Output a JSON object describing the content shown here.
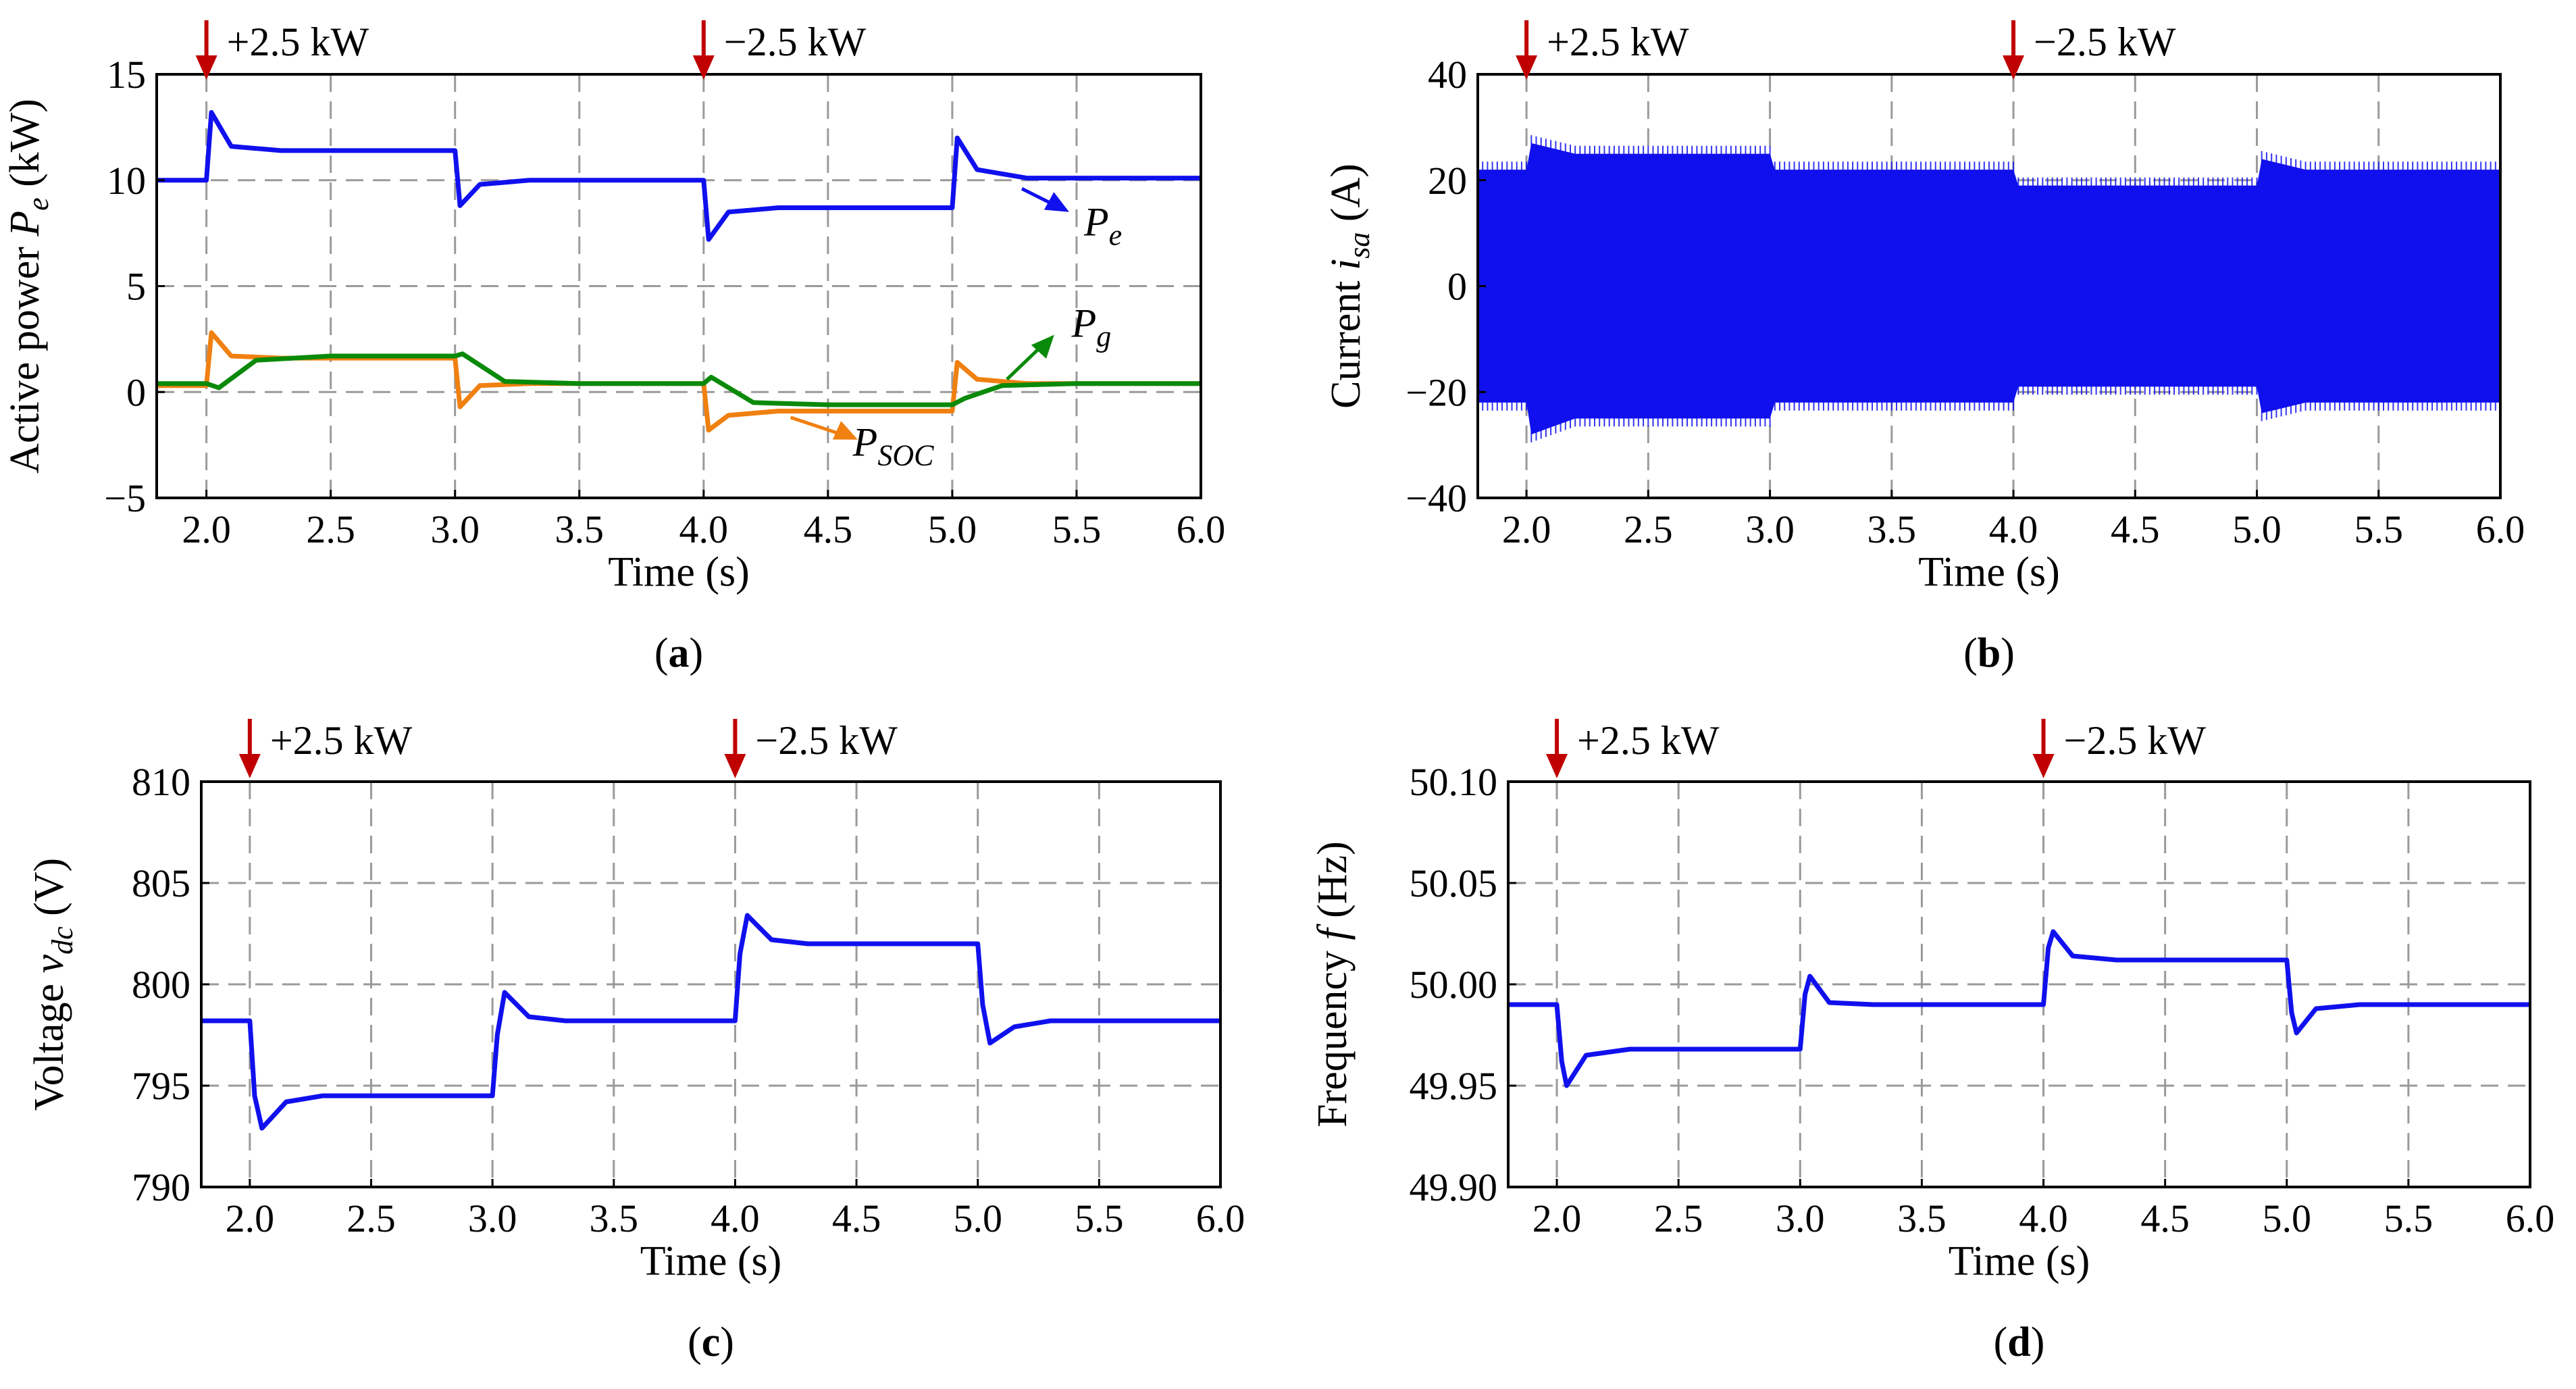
{
  "chart_data": [
    {
      "id": "a",
      "type": "line",
      "caption_letter": "a",
      "xlabel": "Time (s)",
      "ylabel": {
        "prefix": "Active power ",
        "var": "P",
        "sub": "e",
        "suffix": " (kW)"
      },
      "xlim": [
        1.8,
        6.0
      ],
      "ylim": [
        -5,
        15
      ],
      "xticks": [
        2.0,
        2.5,
        3.0,
        3.5,
        4.0,
        4.5,
        5.0,
        5.5,
        6.0
      ],
      "xtick_labels": [
        "2.0",
        "2.5",
        "3.0",
        "3.5",
        "4.0",
        "4.5",
        "5.0",
        "5.5",
        "6.0"
      ],
      "yticks": [
        -5,
        0,
        5,
        10,
        15
      ],
      "ytick_labels": [
        "−5",
        "0",
        "5",
        "10",
        "15"
      ],
      "annotations": [
        {
          "x": 2.0,
          "text": "+2.5 kW"
        },
        {
          "x": 4.0,
          "text": "−2.5 kW"
        }
      ],
      "series": [
        {
          "name": "P_e",
          "label_var": "P",
          "label_sub": "e",
          "color": "#1010ee",
          "x": [
            1.8,
            2.0,
            2.02,
            2.1,
            2.3,
            3.0,
            3.02,
            3.1,
            3.3,
            4.0,
            4.02,
            4.1,
            4.3,
            5.0,
            5.02,
            5.1,
            5.3,
            6.0
          ],
          "y": [
            10.0,
            10.0,
            13.2,
            11.6,
            11.4,
            11.4,
            8.8,
            9.8,
            10.0,
            10.0,
            7.2,
            8.5,
            8.7,
            8.7,
            12.0,
            10.5,
            10.1,
            10.1
          ]
        },
        {
          "name": "P_SOC",
          "label_var": "P",
          "label_sub": "SOC",
          "color": "#f08010",
          "x": [
            1.8,
            2.0,
            2.02,
            2.1,
            2.3,
            3.0,
            3.02,
            3.1,
            3.3,
            4.0,
            4.02,
            4.1,
            4.3,
            5.0,
            5.02,
            5.1,
            5.3,
            6.0
          ],
          "y": [
            0.3,
            0.3,
            2.8,
            1.7,
            1.6,
            1.6,
            -0.7,
            0.3,
            0.4,
            0.4,
            -1.8,
            -1.1,
            -0.9,
            -0.9,
            1.4,
            0.6,
            0.4,
            0.4
          ]
        },
        {
          "name": "P_g",
          "label_var": "P",
          "label_sub": "g",
          "color": "#0a8a0a",
          "x": [
            1.8,
            2.0,
            2.05,
            2.2,
            2.5,
            3.0,
            3.03,
            3.2,
            3.5,
            4.0,
            4.03,
            4.2,
            4.5,
            5.0,
            5.05,
            5.2,
            5.5,
            6.0
          ],
          "y": [
            0.4,
            0.4,
            0.2,
            1.5,
            1.7,
            1.7,
            1.8,
            0.5,
            0.4,
            0.4,
            0.7,
            -0.5,
            -0.6,
            -0.6,
            -0.3,
            0.3,
            0.4,
            0.4
          ]
        }
      ]
    },
    {
      "id": "b",
      "type": "line",
      "caption_letter": "b",
      "xlabel": "Time (s)",
      "ylabel": {
        "prefix": "Current ",
        "var": "i",
        "sub": "sa",
        "suffix": " (A)"
      },
      "xlim": [
        1.8,
        6.0
      ],
      "ylim": [
        -40,
        40
      ],
      "xticks": [
        2.0,
        2.5,
        3.0,
        3.5,
        4.0,
        4.5,
        5.0,
        5.5,
        6.0
      ],
      "xtick_labels": [
        "2.0",
        "2.5",
        "3.0",
        "3.5",
        "4.0",
        "4.5",
        "5.0",
        "5.5",
        "6.0"
      ],
      "yticks": [
        -40,
        -20,
        0,
        20,
        40
      ],
      "ytick_labels": [
        "−40",
        "−20",
        "0",
        "20",
        "40"
      ],
      "annotations": [
        {
          "x": 2.0,
          "text": "+2.5 kW"
        },
        {
          "x": 4.0,
          "text": "−2.5 kW"
        }
      ],
      "series": [
        {
          "name": "i_sa envelope",
          "color": "#1010ee",
          "x": [
            1.8,
            2.0,
            2.02,
            2.2,
            3.0,
            3.02,
            3.2,
            4.0,
            4.02,
            4.2,
            5.0,
            5.02,
            5.2,
            6.0
          ],
          "upper": [
            22,
            22,
            27,
            25,
            25,
            22,
            22,
            22,
            19,
            19,
            19,
            24,
            22,
            22
          ],
          "lower": [
            -22,
            -22,
            -28,
            -25,
            -25,
            -22,
            -22,
            -22,
            -19,
            -19,
            -19,
            -24,
            -22,
            -22
          ]
        }
      ]
    },
    {
      "id": "c",
      "type": "line",
      "caption_letter": "c",
      "xlabel": "Time (s)",
      "ylabel": {
        "prefix": "Voltage ",
        "var": "v",
        "sub": "dc",
        "suffix": " (V)"
      },
      "xlim": [
        1.8,
        6.0
      ],
      "ylim": [
        790,
        810
      ],
      "xticks": [
        2.0,
        2.5,
        3.0,
        3.5,
        4.0,
        4.5,
        5.0,
        5.5,
        6.0
      ],
      "xtick_labels": [
        "2.0",
        "2.5",
        "3.0",
        "3.5",
        "4.0",
        "4.5",
        "5.0",
        "5.5",
        "6.0"
      ],
      "yticks": [
        790,
        795,
        800,
        805,
        810
      ],
      "ytick_labels": [
        "790",
        "795",
        "800",
        "805",
        "810"
      ],
      "annotations": [
        {
          "x": 2.0,
          "text": "+2.5 kW"
        },
        {
          "x": 4.0,
          "text": "−2.5 kW"
        }
      ],
      "series": [
        {
          "name": "v_dc",
          "color": "#1010ee",
          "x": [
            1.8,
            2.0,
            2.02,
            2.05,
            2.15,
            2.3,
            3.0,
            3.02,
            3.05,
            3.15,
            3.3,
            4.0,
            4.02,
            4.05,
            4.15,
            4.3,
            5.0,
            5.02,
            5.05,
            5.15,
            5.3,
            6.0
          ],
          "y": [
            798.2,
            798.2,
            794.5,
            792.9,
            794.2,
            794.5,
            794.5,
            797.5,
            799.6,
            798.4,
            798.2,
            798.2,
            801.5,
            803.4,
            802.2,
            802.0,
            802.0,
            799.0,
            797.1,
            797.9,
            798.2,
            798.2
          ]
        }
      ]
    },
    {
      "id": "d",
      "type": "line",
      "caption_letter": "d",
      "xlabel": "Time (s)",
      "ylabel": {
        "prefix": "Frequency ",
        "var": "f",
        "sub": "",
        "suffix": " (Hz)"
      },
      "xlim": [
        1.8,
        6.0
      ],
      "ylim": [
        49.9,
        50.1
      ],
      "xticks": [
        2.0,
        2.5,
        3.0,
        3.5,
        4.0,
        4.5,
        5.0,
        5.5,
        6.0
      ],
      "xtick_labels": [
        "2.0",
        "2.5",
        "3.0",
        "3.5",
        "4.0",
        "4.5",
        "5.0",
        "5.5",
        "6.0"
      ],
      "yticks": [
        49.9,
        49.95,
        50.0,
        50.05,
        50.1
      ],
      "ytick_labels": [
        "49.90",
        "49.95",
        "50.00",
        "50.05",
        "50.10"
      ],
      "annotations": [
        {
          "x": 2.0,
          "text": "+2.5 kW"
        },
        {
          "x": 4.0,
          "text": "−2.5 kW"
        }
      ],
      "series": [
        {
          "name": "f",
          "color": "#1010ee",
          "x": [
            1.8,
            2.0,
            2.02,
            2.04,
            2.12,
            2.3,
            3.0,
            3.02,
            3.04,
            3.12,
            3.3,
            4.0,
            4.02,
            4.04,
            4.12,
            4.3,
            5.0,
            5.02,
            5.04,
            5.12,
            5.3,
            6.0
          ],
          "y": [
            49.99,
            49.99,
            49.962,
            49.95,
            49.965,
            49.968,
            49.968,
            49.995,
            50.004,
            49.991,
            49.99,
            49.99,
            50.018,
            50.026,
            50.014,
            50.012,
            50.012,
            49.986,
            49.976,
            49.988,
            49.99,
            49.99
          ]
        }
      ]
    }
  ]
}
